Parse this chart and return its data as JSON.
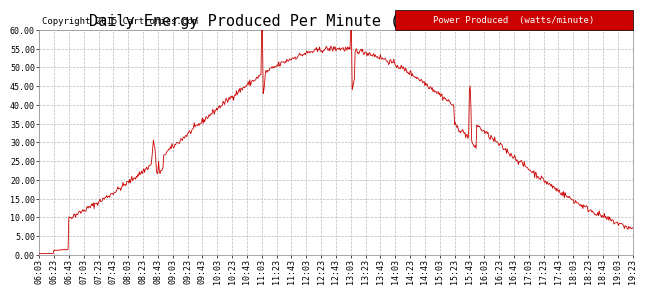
{
  "title": "Daily Energy Produced Per Minute (Wm) Sat Apr 18 19:33",
  "copyright": "Copyright 2015 Cartronics.com",
  "legend_label": "Power Produced  (watts/minute)",
  "legend_bg": "#cc0000",
  "legend_fg": "#ffffff",
  "line_color": "#cc0000",
  "bg_color": "#ffffff",
  "grid_color": "#bbbbbb",
  "ylim": [
    0,
    60
  ],
  "yticks": [
    0,
    5,
    10,
    15,
    20,
    25,
    30,
    35,
    40,
    45,
    50,
    55,
    60
  ],
  "ytick_labels": [
    "0.00",
    "5.00",
    "10.00",
    "15.00",
    "20.00",
    "25.00",
    "30.00",
    "35.00",
    "40.00",
    "45.00",
    "50.00",
    "55.00",
    "60.00"
  ],
  "title_fontsize": 11,
  "copyright_fontsize": 6.5,
  "tick_fontsize": 6,
  "legend_fontsize": 6.5
}
